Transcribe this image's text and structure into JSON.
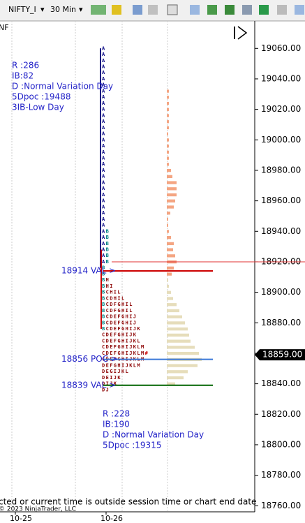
{
  "toolbar": {
    "instrument": "NIFTY_I",
    "interval": "30 Min"
  },
  "chart_data": {
    "type": "market-profile",
    "instrument_short": "NF",
    "ylim": [
      18756,
      19078
    ],
    "yticks": [
      {
        "value": 19060,
        "label": "19060.00"
      },
      {
        "value": 19040,
        "label": "19040.00"
      },
      {
        "value": 19020,
        "label": "19020.00"
      },
      {
        "value": 19000,
        "label": "19000.00"
      },
      {
        "value": 18980,
        "label": "18980.00"
      },
      {
        "value": 18960,
        "label": "18960.00"
      },
      {
        "value": 18940,
        "label": "18940.00"
      },
      {
        "value": 18920,
        "label": "18920.00"
      },
      {
        "value": 18900,
        "label": "18900.00"
      },
      {
        "value": 18880,
        "label": "18880.00"
      },
      {
        "value": 18860,
        "label": "18860.00"
      },
      {
        "value": 18840,
        "label": "18840.00"
      },
      {
        "value": 18820,
        "label": "18820.00"
      },
      {
        "value": 18800,
        "label": "18800.00"
      },
      {
        "value": 18780,
        "label": "18780.00"
      },
      {
        "value": 18760,
        "label": "18760.00"
      }
    ],
    "categories": [
      "10-25",
      "10-26"
    ],
    "last_price": {
      "value": 18859,
      "label": "18859.00"
    },
    "prev_day_notes": [
      "R :286",
      "IB:82",
      "D :Normal Variation Day",
      "5Dpoc :19488",
      "3IB-Low Day"
    ],
    "day_notes": [
      "R :228",
      "IB:190",
      "D :Normal Variation Day",
      "5Dpoc :19315"
    ],
    "levels": [
      {
        "label": "18914 VAL >",
        "price": 18914,
        "color": "#cc0000"
      },
      {
        "label": "18856 POC >",
        "price": 18856,
        "color": "#3a78d8"
      },
      {
        "label": "18839 VAL >",
        "price": 18839,
        "color": "#006400"
      }
    ],
    "reference_line": {
      "price": 18920,
      "color": "#e03030"
    },
    "range_lines": [
      {
        "from": 19060,
        "to": 18916,
        "color": "#000080"
      },
      {
        "from": 18928,
        "to": 18876,
        "color": "#cc0000"
      }
    ],
    "letter_colors": {
      "A": "#000080",
      "B": "#008080",
      "default": "#8b0000",
      "#": "#cc0000"
    },
    "tpo": {
      "prices": [
        19060,
        19056,
        19052,
        19048,
        19044,
        19040,
        19036,
        19032,
        19028,
        19024,
        19020,
        19016,
        19012,
        19008,
        19004,
        19000,
        18996,
        18992,
        18988,
        18984,
        18980,
        18976,
        18972,
        18968,
        18964,
        18960,
        18956,
        18952,
        18948,
        18944,
        18940,
        18936,
        18932,
        18928,
        18924,
        18920,
        18916,
        18912,
        18908,
        18904,
        18900,
        18896,
        18892,
        18888,
        18884,
        18880,
        18876,
        18872,
        18868,
        18864,
        18860,
        18856,
        18852,
        18848,
        18844,
        18840,
        18836
      ],
      "letters": [
        "A",
        "A",
        "A",
        "A",
        "A",
        "A",
        "A",
        "A",
        "A",
        "A",
        "A",
        "A",
        "A",
        "A",
        "A",
        "A",
        "A",
        "A",
        "A",
        "A",
        "A",
        "A",
        "A",
        "A",
        "A",
        "A",
        "A",
        "A",
        "A",
        "A",
        "AB",
        "AB",
        "AB",
        "AB",
        "AB",
        "AB",
        "B",
        "B",
        "BH",
        "BHI",
        "BCHIL",
        "BCDHIL",
        "BCDFGHIL",
        "BCDFGHIL",
        "BCDEFGHIJ",
        "BCDEFGHIJ",
        "BCDEFGHIJK",
        "CDEFGHIJK",
        "CDEFGHIJKL",
        "CDEFGHIJKLM",
        "CDEFGHIJKLM#",
        "CDEFGHIJKLM",
        "DEFGHIJKLM",
        "DEGIJKL",
        "DEIJK",
        "DIJK",
        "DJ"
      ]
    },
    "profile": [
      {
        "color": "#f4a582",
        "prices": [
          19032,
          19028,
          19024,
          19020,
          19016,
          19012,
          19008,
          19004,
          19000,
          18996,
          18992,
          18988,
          18984,
          18980,
          18976,
          18972,
          18968,
          18964,
          18960,
          18956,
          18952,
          18948,
          18944,
          18940,
          18936,
          18932,
          18928,
          18924,
          18920,
          18916,
          18912
        ],
        "values": [
          3,
          3,
          3,
          3,
          3,
          3,
          3,
          2,
          3,
          3,
          3,
          3,
          3,
          6,
          8,
          14,
          14,
          14,
          12,
          10,
          5,
          2,
          2,
          3,
          6,
          10,
          9,
          12,
          14,
          10,
          7
        ]
      },
      {
        "color": "#e6ddbb",
        "prices": [
          18908,
          18904,
          18900,
          18896,
          18892,
          18888,
          18884,
          18880,
          18876,
          18872,
          18868,
          18864,
          18860,
          18856,
          18852,
          18848,
          18844,
          18840
        ],
        "values": [
          2,
          3,
          6,
          9,
          14,
          18,
          22,
          26,
          30,
          32,
          34,
          40,
          46,
          50,
          44,
          30,
          24,
          12
        ]
      }
    ],
    "footer_message": "cted or current time is outside session time or chart end date",
    "copyright": "© 2023 NinjaTrader, LLC"
  }
}
